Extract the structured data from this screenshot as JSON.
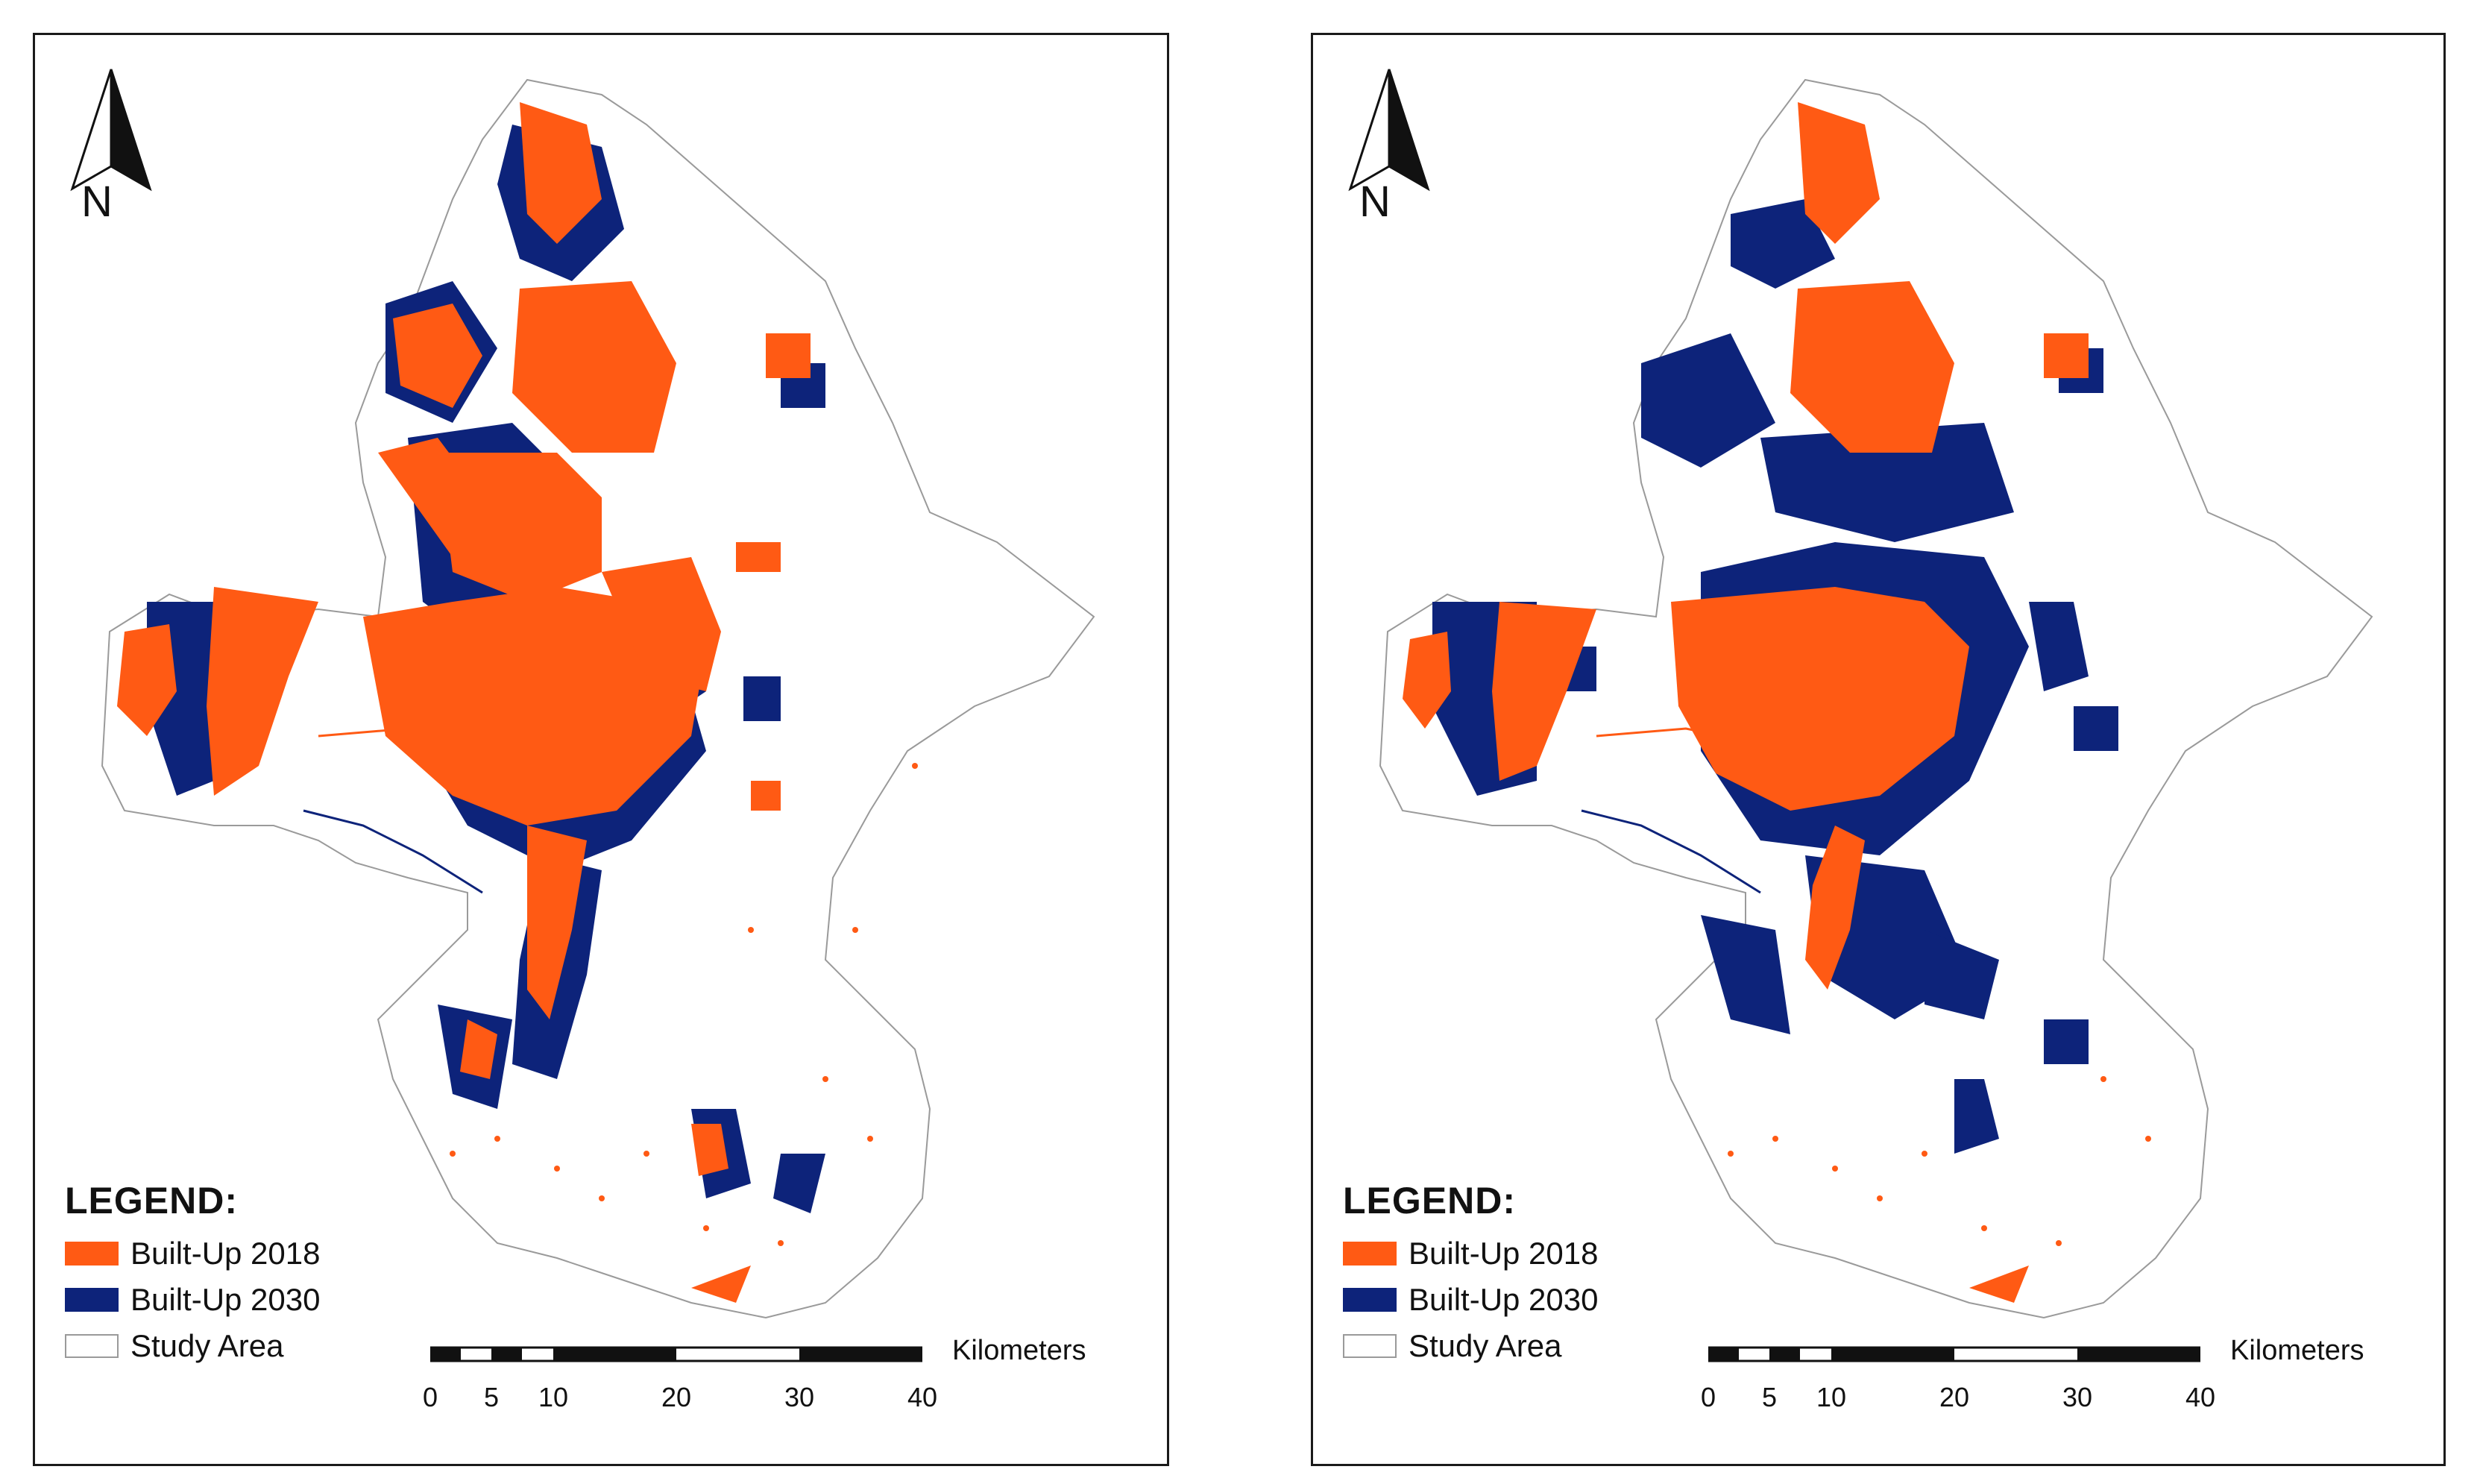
{
  "colors": {
    "built_up_2018": "#ff5a14",
    "built_up_2030": "#0d237a",
    "study_area_outline": "#9a9a9a"
  },
  "panels": [
    {
      "legend": {
        "title": "LEGEND:",
        "items": [
          {
            "label": "Built-Up 2018",
            "color": "#ff5a14"
          },
          {
            "label": "Built-Up 2030",
            "color": "#0d237a"
          },
          {
            "label": "Study Area",
            "color": "#ffffff"
          }
        ]
      },
      "north_arrow": {
        "letter": "N"
      },
      "scale_bar": {
        "unit": "Kilometers",
        "ticks": [
          "0",
          "5",
          "10",
          "20",
          "30",
          "40"
        ]
      }
    },
    {
      "legend": {
        "title": "LEGEND:",
        "items": [
          {
            "label": "Built-Up 2018",
            "color": "#ff5a14"
          },
          {
            "label": "Built-Up 2030",
            "color": "#0d237a"
          },
          {
            "label": "Study Area",
            "color": "#ffffff"
          }
        ]
      },
      "north_arrow": {
        "letter": "N"
      },
      "scale_bar": {
        "unit": "Kilometers",
        "ticks": [
          "0",
          "5",
          "10",
          "20",
          "30",
          "40"
        ]
      }
    }
  ]
}
